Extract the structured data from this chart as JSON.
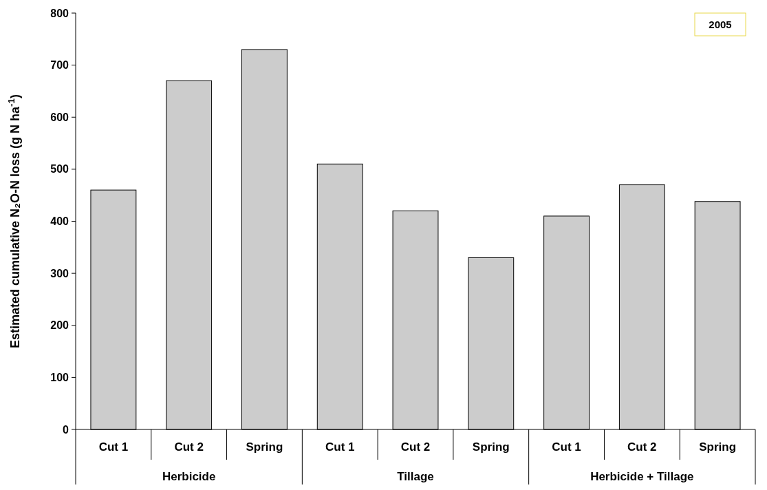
{
  "chart_data": {
    "type": "bar",
    "title": "2005",
    "ylabel": "Estimated cumulative N₂O-N loss (g N ha$^{-1}$)",
    "categories": [
      "Cut 1",
      "Cut 2",
      "Spring",
      "Cut 1",
      "Cut 2",
      "Spring",
      "Cut 1",
      "Cut 2",
      "Spring"
    ],
    "values": [
      460,
      670,
      730,
      510,
      420,
      330,
      410,
      470,
      438
    ],
    "color": "#cccccc",
    "ylim": [
      0,
      800
    ],
    "yticks": [
      0,
      100,
      200,
      300,
      400,
      500,
      600,
      700,
      800
    ],
    "annotations": [
      "Herbicide",
      "Tillage",
      "Herbicide + Tillage"
    ]
  }
}
